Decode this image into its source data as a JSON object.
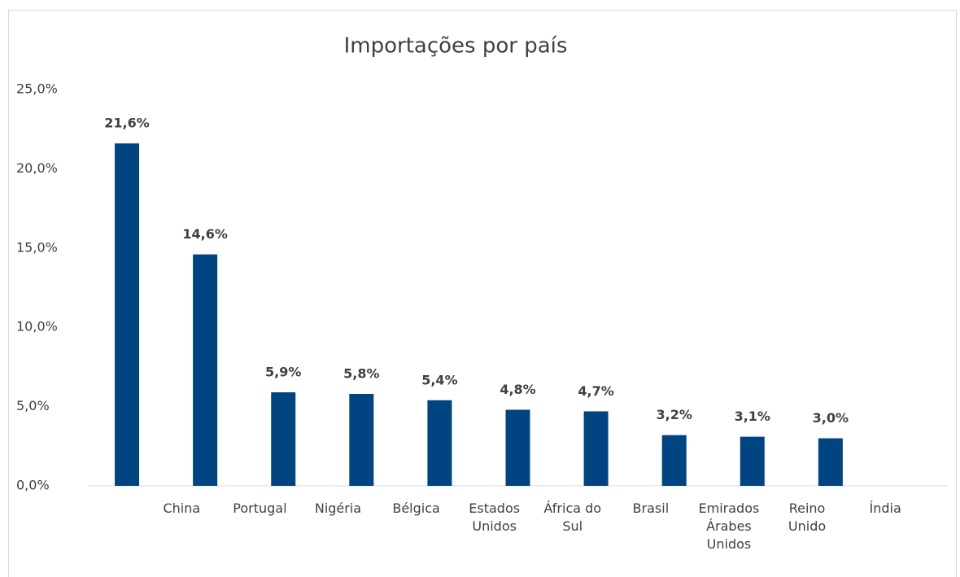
{
  "chart_data": {
    "type": "bar",
    "title": "Importações por país",
    "categories": [
      null,
      "China",
      "Portugal",
      "Nigéria",
      "Bélgica",
      "Estados Unidos",
      "África do Sul",
      "Brasil",
      "Emirados Árabes Unidos",
      "Reino Unido",
      "Índia"
    ],
    "values": [
      21.6,
      14.6,
      5.9,
      5.8,
      5.4,
      4.8,
      4.7,
      3.2,
      3.1,
      3.0,
      null
    ],
    "value_labels": [
      "21,6%",
      "14,6%",
      "5,9%",
      "5,8%",
      "5,4%",
      "4,8%",
      "4,7%",
      "3,2%",
      "3,1%",
      "3,0%",
      null
    ],
    "color": "#004481",
    "ylim": [
      0,
      25
    ],
    "yticks": [
      {
        "value": 0,
        "label": "0,0%"
      },
      {
        "value": 5,
        "label": "5,0%"
      },
      {
        "value": 10,
        "label": "10,0%"
      },
      {
        "value": 15,
        "label": "15,0%"
      },
      {
        "value": 20,
        "label": "20,0%"
      },
      {
        "value": 25,
        "label": "25,0%"
      }
    ],
    "grid": false
  }
}
